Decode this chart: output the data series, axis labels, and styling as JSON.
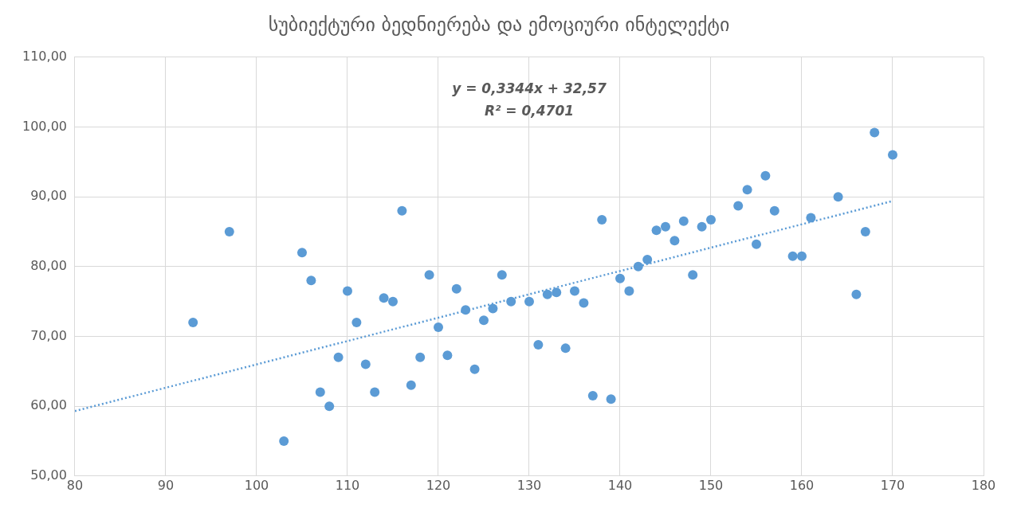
{
  "chart_data": {
    "type": "scatter",
    "title": "სუბიექტური ბედნიერება და ემოციური ინტელექტი",
    "xlim": [
      80,
      180
    ],
    "xticks": [
      80,
      90,
      100,
      110,
      120,
      130,
      140,
      150,
      160,
      170,
      180
    ],
    "ylim": [
      50,
      110
    ],
    "yticks": [
      {
        "value": 50,
        "label": "50,00"
      },
      {
        "value": 60,
        "label": "60,00"
      },
      {
        "value": 70,
        "label": "70,00"
      },
      {
        "value": 80,
        "label": "80,00"
      },
      {
        "value": 90,
        "label": "90,00"
      },
      {
        "value": 100,
        "label": "100,00"
      },
      {
        "value": 110,
        "label": "110,00"
      }
    ],
    "grid": true,
    "legend": false,
    "annotations": [
      "y = 0,3344x + 32,57",
      "R² = 0,4701"
    ],
    "series": [
      {
        "color": "#5b9bd5",
        "marker": "circle",
        "x": [
          93,
          97,
          103,
          105,
          106,
          107,
          108,
          109,
          110,
          111,
          112,
          113,
          114,
          115,
          116,
          117,
          118,
          119,
          120,
          121,
          122,
          123,
          124,
          125,
          126,
          127,
          128,
          130,
          131,
          132,
          133,
          134,
          135,
          136,
          137,
          138,
          139,
          140,
          141,
          142,
          143,
          144,
          145,
          146,
          147,
          148,
          149,
          150,
          153,
          154,
          155,
          156,
          157,
          159,
          160,
          161,
          164,
          166,
          167,
          168,
          170
        ],
        "values": [
          72,
          85,
          55,
          82,
          78,
          62,
          60,
          67,
          76.5,
          72,
          66,
          62,
          75.5,
          75,
          88,
          63,
          67,
          78.8,
          71.3,
          67.3,
          76.8,
          73.8,
          65.3,
          72.3,
          74,
          78.8,
          75,
          75,
          68.8,
          76,
          76.3,
          68.3,
          76.5,
          74.8,
          61.5,
          86.7,
          61,
          78.3,
          76.5,
          80,
          81,
          85.2,
          85.7,
          83.7,
          86.5,
          78.8,
          85.7,
          86.7,
          88.7,
          91,
          83.2,
          93,
          88,
          81.5,
          81.5,
          87,
          90,
          76,
          85,
          99.2,
          96
        ]
      },
      {
        "type": "line",
        "color": "#5b9bd5",
        "marker": "none",
        "line_style": "dotted",
        "x": [
          80,
          170
        ],
        "values": [
          59.3,
          89.4
        ]
      }
    ]
  }
}
